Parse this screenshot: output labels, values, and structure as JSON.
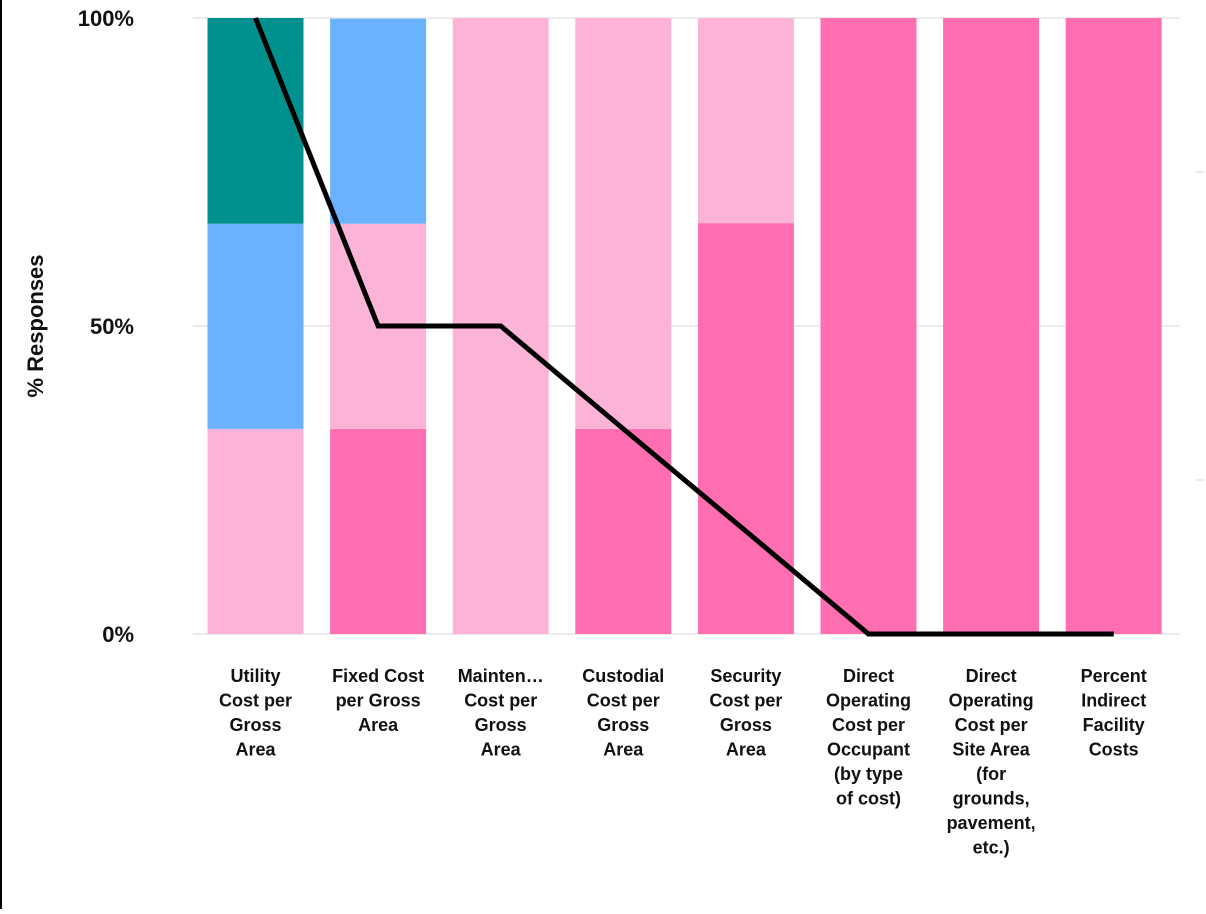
{
  "chart_data": {
    "type": "bar",
    "stacked": true,
    "ylabel": "% Responses",
    "ylim": [
      0,
      100
    ],
    "yticks": [
      "0%",
      "50%",
      "100%"
    ],
    "grid": true,
    "categories": [
      [
        "Utility",
        "Cost per",
        "Gross",
        "Area"
      ],
      [
        "Fixed Cost",
        "per Gross",
        "Area"
      ],
      [
        "Mainten…",
        "Cost per",
        "Gross",
        "Area"
      ],
      [
        "Custodial",
        "Cost per",
        "Gross",
        "Area"
      ],
      [
        "Security",
        "Cost per",
        "Gross",
        "Area"
      ],
      [
        "Direct",
        "Operating",
        "Cost per",
        "Occupant",
        "(by type",
        "of cost)"
      ],
      [
        "Direct",
        "Operating",
        "Cost per",
        "Site Area",
        "(for",
        "grounds,",
        "pavement,",
        "etc.)"
      ],
      [
        "Percent",
        "Indirect",
        "Facility",
        "Costs"
      ]
    ],
    "series": [
      {
        "color": "#ff6eb0",
        "values": [
          0,
          33.3,
          0,
          33.3,
          66.7,
          100,
          100,
          100
        ]
      },
      {
        "color": "#fbb4d8",
        "values": [
          33.3,
          33.3,
          100,
          66.7,
          33.3,
          0,
          0,
          0
        ]
      },
      {
        "color": "#6ab2ff",
        "values": [
          33.3,
          33.3,
          0,
          0,
          0,
          0,
          0,
          0
        ]
      },
      {
        "color": "#00918e",
        "values": [
          33.4,
          0,
          0,
          0,
          0,
          0,
          0,
          0
        ]
      }
    ],
    "line": {
      "color": "#000000",
      "values": [
        100,
        50,
        50,
        33.3,
        16.7,
        0,
        0,
        0
      ]
    }
  }
}
